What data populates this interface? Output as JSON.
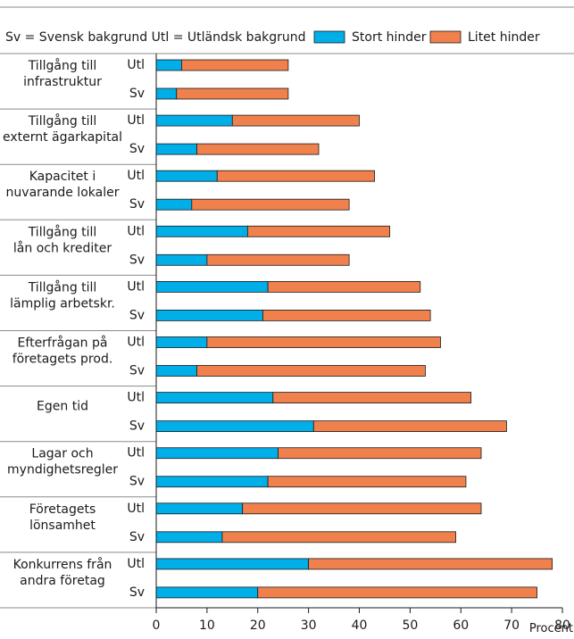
{
  "chart_data": {
    "type": "bar",
    "orientation": "horizontal",
    "stacked": true,
    "legend_note": "Sv = Svensk bakgrund  Utl = Utländsk bakgrund",
    "legend": [
      {
        "name": "Stort hinder",
        "color": "#00aee8"
      },
      {
        "name": "Litet hinder",
        "color": "#f0814d"
      }
    ],
    "groups": [
      {
        "label": [
          "Tillgång till",
          "infrastruktur"
        ],
        "bars": [
          {
            "label": "Utl",
            "stort": 5,
            "litet": 21
          },
          {
            "label": "Sv",
            "stort": 4,
            "litet": 22
          }
        ]
      },
      {
        "label": [
          "Tillgång till",
          "externt ägarkapital"
        ],
        "bars": [
          {
            "label": "Utl",
            "stort": 15,
            "litet": 25
          },
          {
            "label": "Sv",
            "stort": 8,
            "litet": 24
          }
        ]
      },
      {
        "label": [
          "Kapacitet i",
          "nuvarande lokaler"
        ],
        "bars": [
          {
            "label": "Utl",
            "stort": 12,
            "litet": 31
          },
          {
            "label": "Sv",
            "stort": 7,
            "litet": 31
          }
        ]
      },
      {
        "label": [
          "Tillgång till",
          "lån och krediter"
        ],
        "bars": [
          {
            "label": "Utl",
            "stort": 18,
            "litet": 28
          },
          {
            "label": "Sv",
            "stort": 10,
            "litet": 28
          }
        ]
      },
      {
        "label": [
          "Tillgång till",
          "lämplig arbetskr."
        ],
        "bars": [
          {
            "label": "Utl",
            "stort": 22,
            "litet": 30
          },
          {
            "label": "Sv",
            "stort": 21,
            "litet": 33
          }
        ]
      },
      {
        "label": [
          "Efterfrågan på",
          "företagets prod."
        ],
        "bars": [
          {
            "label": "Utl",
            "stort": 10,
            "litet": 46
          },
          {
            "label": "Sv",
            "stort": 8,
            "litet": 45
          }
        ]
      },
      {
        "label": [
          "Egen tid"
        ],
        "bars": [
          {
            "label": "Utl",
            "stort": 23,
            "litet": 39
          },
          {
            "label": "Sv",
            "stort": 31,
            "litet": 38
          }
        ]
      },
      {
        "label": [
          "Lagar och",
          "myndighetsregler"
        ],
        "bars": [
          {
            "label": "Utl",
            "stort": 24,
            "litet": 40
          },
          {
            "label": "Sv",
            "stort": 22,
            "litet": 39
          }
        ]
      },
      {
        "label": [
          "Företagets",
          "lönsamhet"
        ],
        "bars": [
          {
            "label": "Utl",
            "stort": 17,
            "litet": 47
          },
          {
            "label": "Sv",
            "stort": 13,
            "litet": 46
          }
        ]
      },
      {
        "label": [
          "Konkurrens från",
          "andra företag"
        ],
        "bars": [
          {
            "label": "Utl",
            "stort": 30,
            "litet": 48
          },
          {
            "label": "Sv",
            "stort": 20,
            "litet": 55
          }
        ]
      }
    ],
    "xlabel": "Procent",
    "xlim": [
      0,
      80
    ],
    "xticks": [
      0,
      10,
      20,
      30,
      40,
      50,
      60,
      70,
      80
    ],
    "grid": false
  }
}
